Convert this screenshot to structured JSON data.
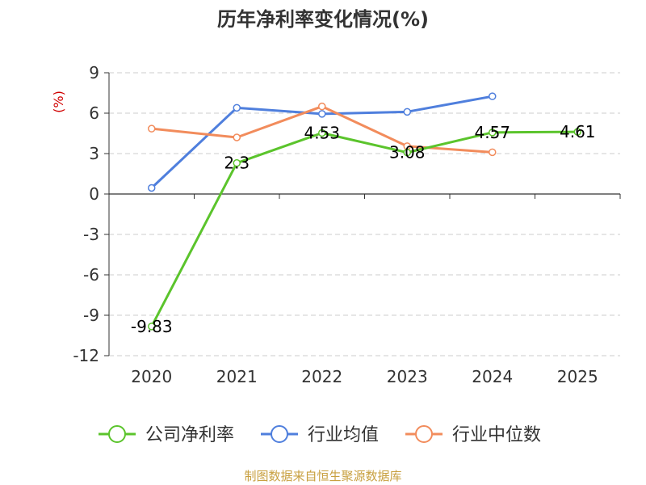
{
  "chart_data": {
    "type": "line",
    "title": "历年净利率变化情况(%)",
    "ylabel": "(%)",
    "xlabel": "",
    "categories": [
      "2020",
      "2021",
      "2022",
      "2023",
      "2024",
      "2025"
    ],
    "ylim": [
      -12,
      9
    ],
    "yticks": [
      9,
      6,
      3,
      0,
      -3,
      -6,
      -9,
      -12
    ],
    "grid": true,
    "legend": "bottom",
    "series": [
      {
        "name": "公司净利率",
        "color": "#5bc42c",
        "values": [
          -9.83,
          2.3,
          4.53,
          3.08,
          4.57,
          4.61
        ],
        "labels": [
          "-9.83",
          "2.3",
          "4.53",
          "3.08",
          "4.57",
          "4.61"
        ]
      },
      {
        "name": "行业均值",
        "color": "#4f7fdd",
        "values": [
          0.45,
          6.4,
          5.95,
          6.1,
          7.25,
          null
        ]
      },
      {
        "name": "行业中位数",
        "color": "#f28c5c",
        "values": [
          4.85,
          4.2,
          6.5,
          3.55,
          3.1,
          null
        ]
      }
    ]
  },
  "source": {
    "text": "制图数据来自恒生聚源数据库",
    "color": "#c8a040"
  },
  "colors": {
    "ylabel": "#d00000",
    "grid": "#cccccc",
    "axis": "#333333"
  }
}
